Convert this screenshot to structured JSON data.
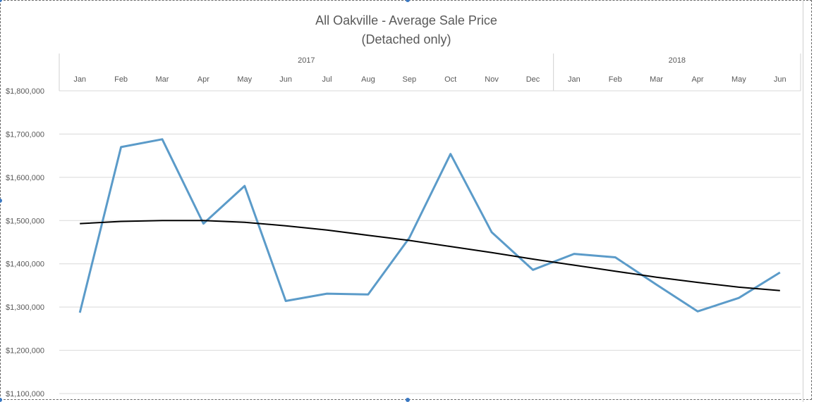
{
  "chart_data": {
    "type": "line",
    "title": "All  Oakville - Average Sale Price",
    "subtitle": "(Detached only)",
    "years": [
      {
        "label": "2017",
        "months": 12
      },
      {
        "label": "2018",
        "months": 6
      }
    ],
    "categories": [
      "Jan",
      "Feb",
      "Mar",
      "Apr",
      "May",
      "Jun",
      "Jul",
      "Aug",
      "Sep",
      "Oct",
      "Nov",
      "Dec",
      "Jan",
      "Feb",
      "Mar",
      "Apr",
      "May",
      "Jun"
    ],
    "ylim": [
      1100000,
      1800000
    ],
    "yticks": [
      1800000,
      1700000,
      1600000,
      1500000,
      1400000,
      1300000,
      1200000,
      1100000
    ],
    "ytick_labels": [
      "$1,800,000",
      "$1,700,000",
      "$1,600,000",
      "$1,500,000",
      "$1,400,000",
      "$1,300,000",
      "$1,200,000",
      "$1,100,000"
    ],
    "grid": true,
    "series": [
      {
        "values": [
          1287000,
          1670000,
          1688000,
          1493000,
          1580000,
          1314000,
          1331000,
          1329000,
          1460000,
          1654000,
          1473000,
          1386000,
          1423000,
          1415000,
          1352000,
          1290000,
          1321000,
          1380000
        ],
        "color": "#5b9bc9"
      },
      {
        "values": [
          1493000,
          1498000,
          1500000,
          1500000,
          1496000,
          1488000,
          1478000,
          1466000,
          1454000,
          1440000,
          1426000,
          1411000,
          1397000,
          1383000,
          1369000,
          1357000,
          1346000,
          1338000
        ],
        "color": "#000000"
      }
    ]
  }
}
